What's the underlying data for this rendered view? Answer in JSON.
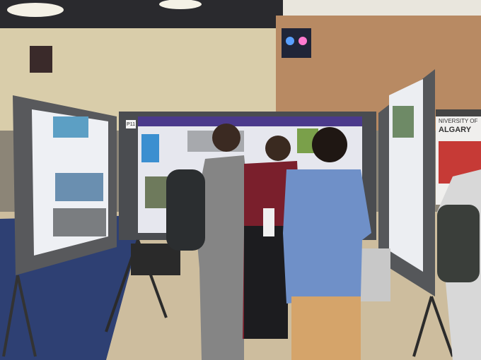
{
  "board_label": "P11",
  "signage": {
    "line1": "NIVERSITY OF",
    "line2": "ALGARY"
  }
}
